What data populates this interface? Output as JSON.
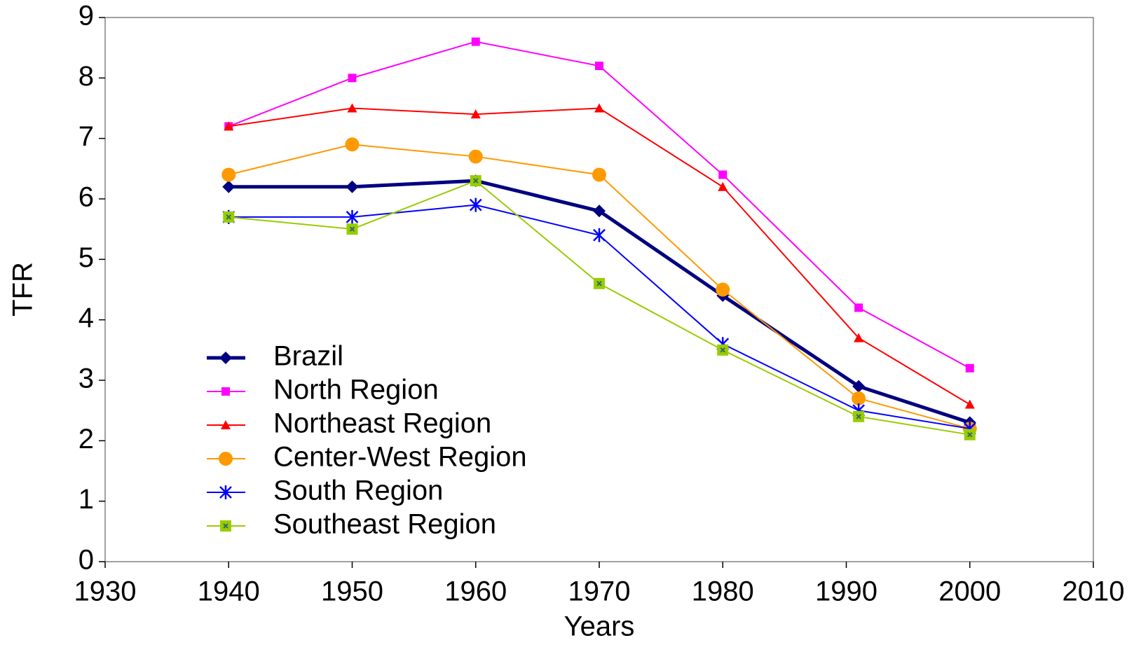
{
  "chart_data": {
    "type": "line",
    "x_label": "Years",
    "y_label": "TFR",
    "x": [
      1940,
      1950,
      1960,
      1970,
      1980,
      1991,
      2000
    ],
    "xlim": [
      1930,
      2010
    ],
    "xticks": [
      1930,
      1940,
      1950,
      1960,
      1970,
      1980,
      1990,
      2000,
      2010
    ],
    "ylim": [
      0,
      9
    ],
    "yticks": [
      0,
      1,
      2,
      3,
      4,
      5,
      6,
      7,
      8,
      9
    ],
    "grid": false,
    "legend": "lower left",
    "series": [
      {
        "name": "Brazil",
        "color": "#000080",
        "marker": "diamond",
        "linewidth": 5,
        "values": [
          6.2,
          6.2,
          6.3,
          5.8,
          4.4,
          2.9,
          2.3
        ]
      },
      {
        "name": "North Region",
        "color": "#ff00ff",
        "marker": "square",
        "linewidth": 2,
        "values": [
          7.2,
          8.0,
          8.6,
          8.2,
          6.4,
          4.2,
          3.2
        ]
      },
      {
        "name": "Northeast Region",
        "color": "#ff0000",
        "marker": "triangle",
        "linewidth": 2,
        "values": [
          7.2,
          7.5,
          7.4,
          7.5,
          6.2,
          3.7,
          2.6
        ]
      },
      {
        "name": "Center-West Region",
        "color": "#ff9900",
        "marker": "circle",
        "linewidth": 2,
        "values": [
          6.4,
          6.9,
          6.7,
          6.4,
          4.5,
          2.7,
          2.2
        ]
      },
      {
        "name": "South Region",
        "color": "#0000ff",
        "marker": "star",
        "linewidth": 2,
        "values": [
          5.7,
          5.7,
          5.9,
          5.4,
          3.6,
          2.5,
          2.2
        ]
      },
      {
        "name": "Southeast Region",
        "color": "#99cc00",
        "marker": "xsquare",
        "linewidth": 2,
        "values": [
          5.7,
          5.5,
          6.3,
          4.6,
          3.5,
          2.4,
          2.1
        ]
      }
    ]
  }
}
